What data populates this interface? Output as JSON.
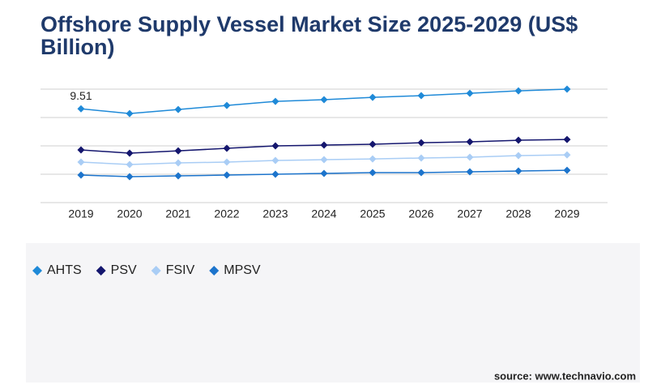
{
  "chart_data": {
    "type": "line",
    "title": "Offshore Supply Vessel Market Size 2025-2029 (US$ Billion)",
    "source": "source: www.technavio.com",
    "categories": [
      "2019",
      "2020",
      "2021",
      "2022",
      "2023",
      "2024",
      "2025",
      "2026",
      "2027",
      "2028",
      "2029"
    ],
    "series": [
      {
        "name": "AHTS",
        "color": "#1f8ad8",
        "values": [
          9.51,
          9.03,
          9.44,
          9.85,
          10.26,
          10.43,
          10.67,
          10.84,
          11.08,
          11.33,
          11.5
        ]
      },
      {
        "name": "PSV",
        "color": "#14166e",
        "values": [
          5.34,
          5.01,
          5.25,
          5.5,
          5.75,
          5.83,
          5.91,
          6.07,
          6.16,
          6.32,
          6.4
        ]
      },
      {
        "name": "FSIV",
        "color": "#a9cdf5",
        "values": [
          4.11,
          3.86,
          4.02,
          4.11,
          4.27,
          4.35,
          4.43,
          4.52,
          4.6,
          4.76,
          4.84
        ]
      },
      {
        "name": "MPSV",
        "color": "#1c74cc",
        "values": [
          2.79,
          2.63,
          2.71,
          2.79,
          2.87,
          2.96,
          3.04,
          3.04,
          3.12,
          3.2,
          3.28
        ]
      }
    ],
    "ylim": [
      0,
      11.5
    ],
    "yticks": [
      0,
      2.875,
      5.75,
      8.625,
      11.5
    ],
    "grid": true
  }
}
